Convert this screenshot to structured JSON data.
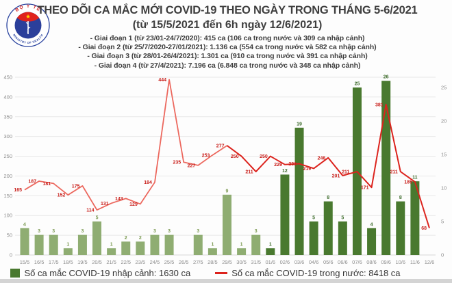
{
  "logo": {
    "top_text": "BỘ Y TẾ",
    "bottom_text": "MINISTRY OF HEALTH",
    "ring_color": "#27419e",
    "inner_color": "#2b3f9b",
    "flag_color": "#e0231d",
    "star_color": "#ffd900"
  },
  "header": {
    "title_line1": "THEO DÕI CA MẮC MỚI COVID-19 THEO NGÀY TRONG THÁNG 5-6/2021",
    "title_line2": "(từ 15/5/2021 đến 6h ngày 12/6/2021)",
    "period_lines": [
      "- Giai đoạn 1 (từ 23/01-24/7/2020): 415 ca (106 ca trong nước và 309 ca nhập cảnh)",
      "- Giai đoạn 2 (từ 25/7/2020-27/01/2021): 1.136 ca (554 ca trong nước và 582 ca nhập cảnh)",
      "- Giai đoạn 3 (từ 28/01-26/4/2021): 1.301 ca (910 ca trong nước và 391 ca nhập cảnh)",
      "- Giai đoạn 4 (từ 27/4/2021): 7.196 ca (6.848 ca trong nước và 348 ca nhập cảnh)"
    ]
  },
  "chart_data": {
    "type": "combo-bar-line",
    "title": "Theo dõi ca mắc mới COVID-19 theo ngày trong tháng 5-6/2021",
    "categories": [
      "15/5",
      "16/5",
      "17/5",
      "18/5",
      "19/5",
      "20/5",
      "21/5",
      "22/5",
      "23/5",
      "24/5",
      "25/5",
      "26/5",
      "27/5",
      "28/5",
      "29/5",
      "30/5",
      "31/5",
      "01/6",
      "02/6",
      "03/6",
      "04/6",
      "05/6",
      "06/6",
      "07/6",
      "08/6",
      "09/6",
      "10/6",
      "11/6",
      "12/6"
    ],
    "series": [
      {
        "name": "Số ca mắc COVID-19 nhập cảnh",
        "type": "bar",
        "axis": "right",
        "values": [
          4,
          3,
          3,
          1,
          3,
          5,
          1,
          2,
          2,
          3,
          3,
          null,
          3,
          1,
          9,
          1,
          3,
          1,
          12,
          19,
          5,
          8,
          5,
          25,
          4,
          26,
          8,
          11,
          null
        ],
        "color_may": "#8fad72",
        "color_june": "#49792f",
        "label_color_may": "#79984f",
        "label_color_june": "#3c6b2a",
        "june_start_index": 17
      },
      {
        "name": "Số ca mắc COVID-19 trong nước",
        "type": "line",
        "axis": "left",
        "values": [
          165,
          187,
          181,
          152,
          175,
          114,
          131,
          143,
          129,
          184,
          444,
          235,
          227,
          253,
          277,
          250,
          211,
          250,
          229,
          231,
          219,
          246,
          201,
          211,
          171,
          381,
          211,
          185,
          68
        ],
        "color_early": "#ec685e",
        "color_late": "#dc231d",
        "label_color": "#c9201c",
        "dark_from_index": 14
      }
    ],
    "left_axis": {
      "min": 0,
      "max": 450,
      "step": 50
    },
    "right_axis": {
      "min": 0,
      "max": 25,
      "step": 5
    },
    "grid": true,
    "gridline_color": "#e8e8e8",
    "legend_position": "bottom"
  },
  "legend": {
    "items": [
      {
        "label": "Số ca mắc COVID-19 nhập cảnh: 1630 ca",
        "swatch": "square",
        "color": "#49792f"
      },
      {
        "label": "Số ca mắc COVID-19 trong nước: 8418 ca",
        "swatch": "line",
        "color": "#dc231d"
      }
    ]
  }
}
